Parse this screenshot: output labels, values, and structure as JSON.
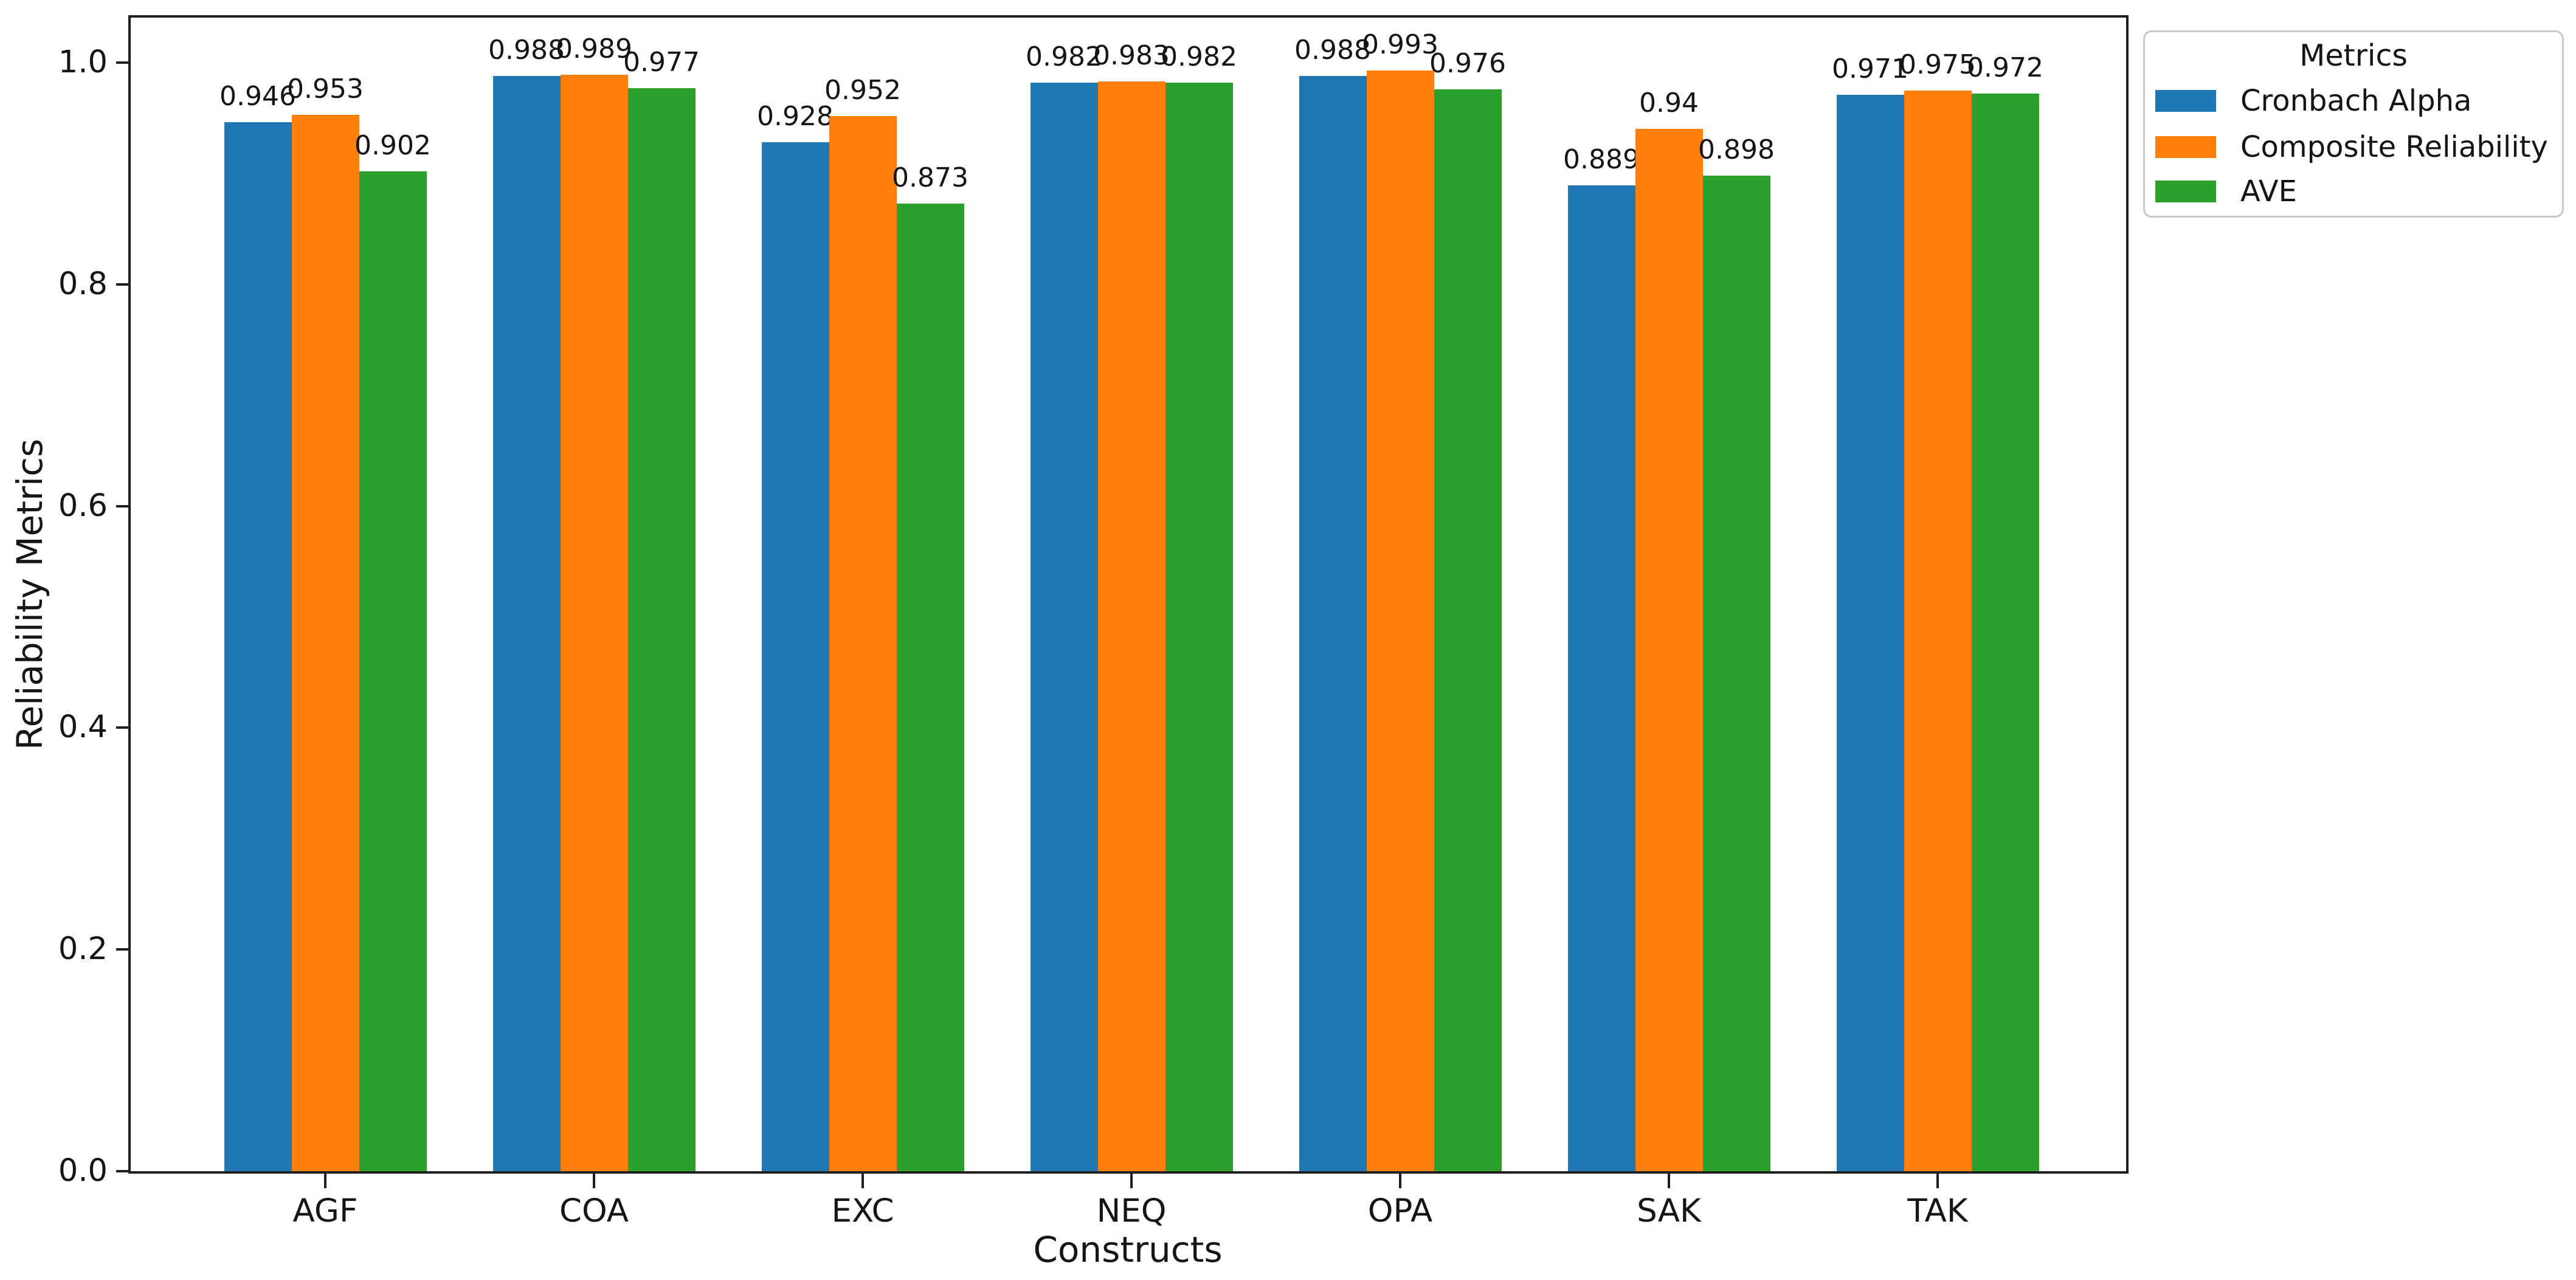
{
  "chart_data": {
    "type": "bar",
    "title": "",
    "xlabel": "Constructs",
    "ylabel": "Reliability Metrics",
    "categories": [
      "AGF",
      "COA",
      "EXC",
      "NEQ",
      "OPA",
      "SAK",
      "TAK"
    ],
    "series": [
      {
        "name": "Cronbach Alpha",
        "color": "#1f77b4",
        "values": [
          0.946,
          0.988,
          0.928,
          0.982,
          0.988,
          0.889,
          0.971
        ],
        "labels": [
          "0.946",
          "0.988",
          "0.928",
          "0.982",
          "0.988",
          "0.889",
          "0.971"
        ]
      },
      {
        "name": "Composite Reliability",
        "color": "#ff7f0e",
        "values": [
          0.953,
          0.989,
          0.952,
          0.983,
          0.993,
          0.94,
          0.975
        ],
        "labels": [
          "0.953",
          "0.989",
          "0.952",
          "0.983",
          "0.993",
          "0.94",
          "0.975"
        ]
      },
      {
        "name": "AVE",
        "color": "#2ca02c",
        "values": [
          0.902,
          0.977,
          0.873,
          0.982,
          0.976,
          0.898,
          0.972
        ],
        "labels": [
          "0.902",
          "0.977",
          "0.873",
          "0.982",
          "0.976",
          "0.898",
          "0.972"
        ]
      }
    ],
    "ylim": [
      0,
      1.043
    ],
    "yticks": [
      "0.0",
      "0.2",
      "0.4",
      "0.6",
      "0.8",
      "1.0"
    ],
    "bar_group_width": 0.75,
    "grid": false,
    "legend": {
      "title": "Metrics",
      "position": "upper-right-outside"
    }
  }
}
